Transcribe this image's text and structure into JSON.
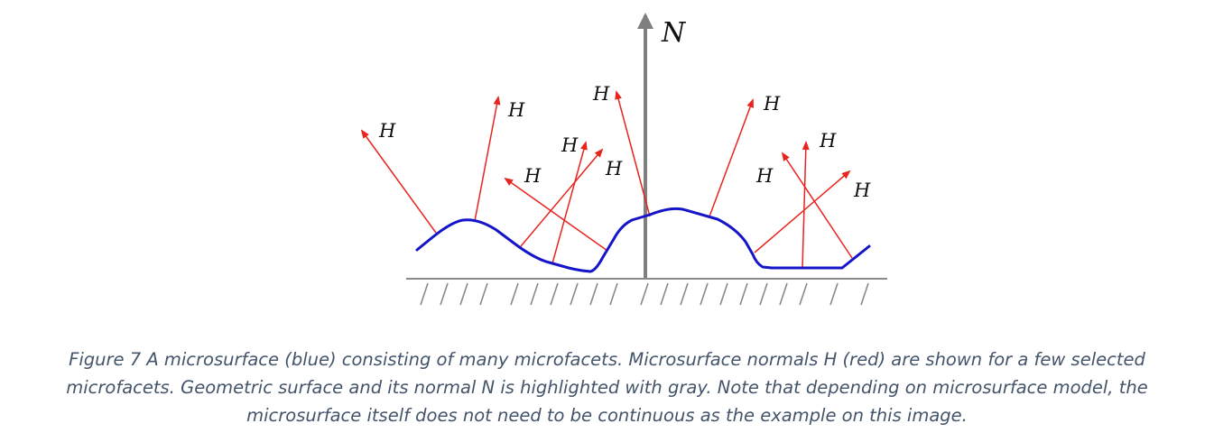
{
  "diagram": {
    "normal_label": "N",
    "facet_normal_label": "H",
    "colors": {
      "microsurface": "#1414c8",
      "facet_normals": "#e8241f",
      "geometric_surface": "#7f7f7f"
    }
  },
  "caption": {
    "line1": "Figure 7 A microsurface (blue) consisting of many microfacets. Microsurface normals H (red) are shown for a few selected",
    "line2": "microfacets. Geometric surface and its normal N is highlighted with gray. Note that depending on microsurface model, the",
    "line3": "microsurface itself does not need to be continuous as the example on this image."
  }
}
